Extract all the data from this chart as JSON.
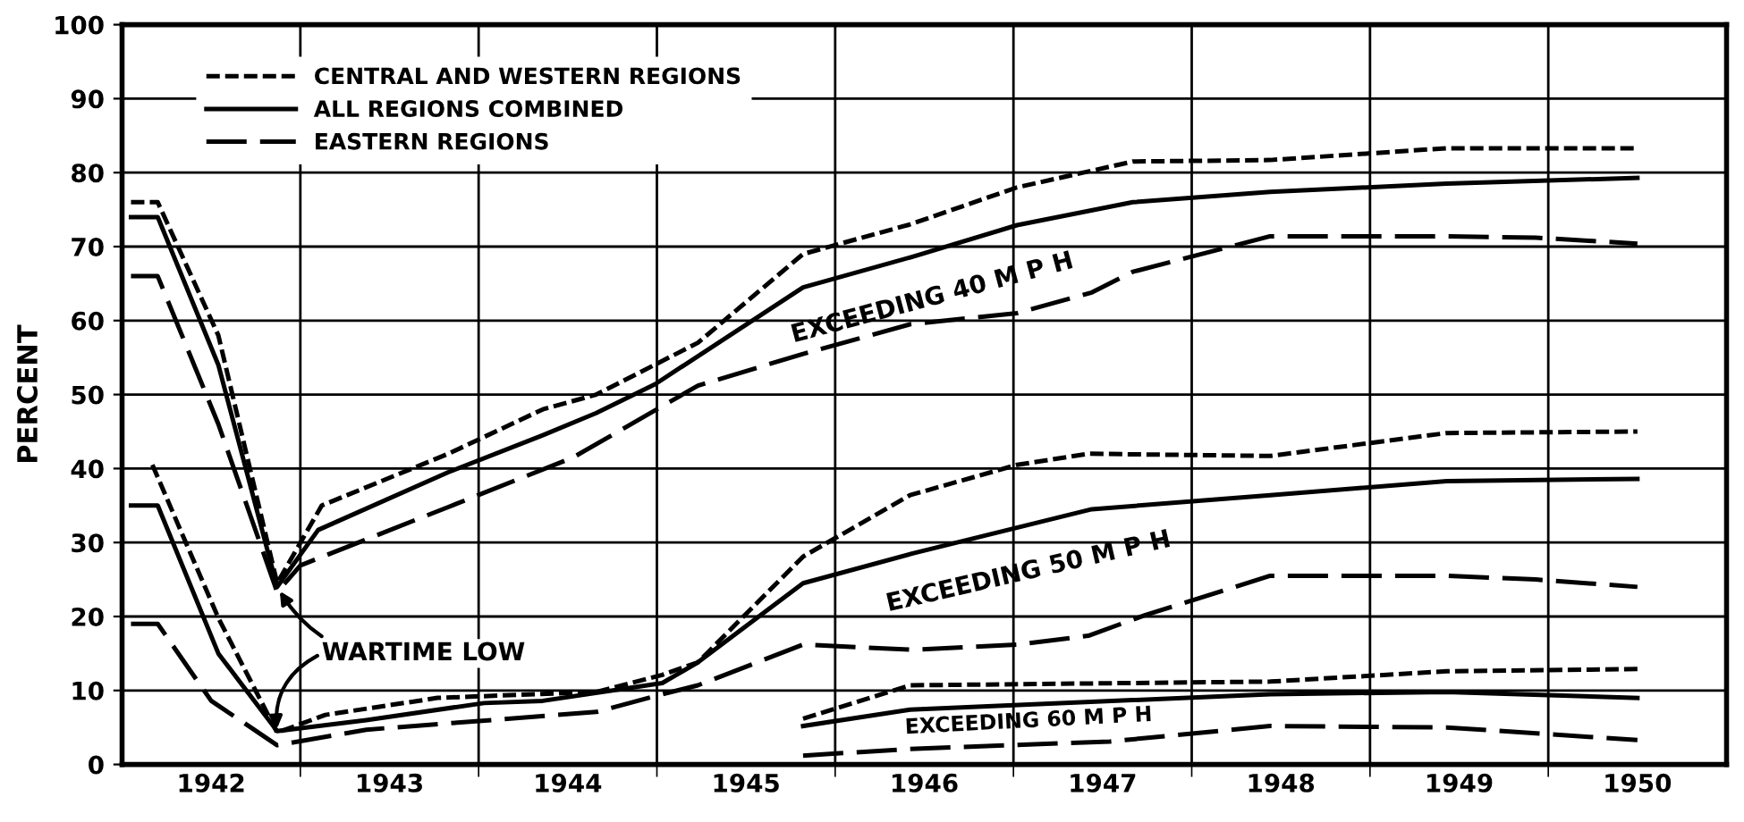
{
  "chart_data": {
    "type": "line",
    "ylabel": "PERCENT",
    "xlim": [
      1942,
      1951
    ],
    "ylim": [
      0,
      100
    ],
    "xticks": [
      {
        "value": 1942.5,
        "label": "1942"
      },
      {
        "value": 1943.5,
        "label": "1943"
      },
      {
        "value": 1944.5,
        "label": "1944"
      },
      {
        "value": 1945.5,
        "label": "1945"
      },
      {
        "value": 1946.5,
        "label": "1946"
      },
      {
        "value": 1947.5,
        "label": "1947"
      },
      {
        "value": 1948.5,
        "label": "1948"
      },
      {
        "value": 1949.5,
        "label": "1949"
      },
      {
        "value": 1950.5,
        "label": "1950"
      },
      {
        "value": 1943,
        "label": null
      },
      {
        "value": 1944,
        "label": null
      },
      {
        "value": 1945,
        "label": null
      },
      {
        "value": 1946,
        "label": null
      },
      {
        "value": 1947,
        "label": null
      },
      {
        "value": 1948,
        "label": null
      },
      {
        "value": 1949,
        "label": null
      },
      {
        "value": 1950,
        "label": null
      }
    ],
    "yticks": [
      0,
      10,
      20,
      30,
      40,
      50,
      60,
      70,
      80,
      90,
      100
    ],
    "grid": true,
    "legend": "top left",
    "series": [
      {
        "name": "CENTRAL AND WESTERN REGIONS",
        "color": "#000000",
        "line_style": "dashed",
        "x": [
          1942.05,
          1942.2,
          1942.54,
          1942.87,
          1943.12,
          1943.83,
          1944.36,
          1944.66,
          1945.23,
          1945.82,
          1946.42,
          1947.02,
          1947.67,
          1948.44,
          1949.43,
          1950.5
        ],
        "values": [
          76,
          76,
          58,
          24.5,
          35,
          42,
          48,
          50,
          57,
          69,
          73,
          78,
          81.5,
          81.7,
          83.3,
          83.3
        ]
      },
      {
        "name": "ALL REGIONS COMBINED",
        "color": "#000000",
        "line_style": "solid",
        "x": [
          1942.05,
          1942.2,
          1942.54,
          1942.87,
          1943.1,
          1943.83,
          1944.36,
          1944.66,
          1944.99,
          1945.82,
          1946.43,
          1947.02,
          1947.67,
          1948.44,
          1949.43,
          1950.5
        ],
        "values": [
          74,
          74,
          54,
          24,
          31.7,
          39.5,
          44.5,
          47.5,
          51.4,
          64.5,
          68.6,
          72.9,
          76,
          77.4,
          78.5,
          79.3
        ]
      },
      {
        "name": "EASTERN REGIONS",
        "color": "#000000",
        "line_style": "dashed",
        "x": [
          1942.05,
          1942.2,
          1942.54,
          1942.87,
          1943.0,
          1943.83,
          1944.53,
          1945.23,
          1945.82,
          1946.42,
          1947.02,
          1947.44,
          1947.67,
          1948.44,
          1949.43,
          1949.93,
          1950.5
        ],
        "values": [
          66,
          66,
          46,
          23.3,
          26.9,
          34.8,
          41.5,
          51.2,
          55.5,
          59.5,
          61,
          63.8,
          66.6,
          71.4,
          71.4,
          71.2,
          70.4
        ]
      },
      {
        "color": "#000000",
        "line_style": "dashed",
        "x": [
          1942.17,
          1942.54,
          1942.87,
          1943.14,
          1943.77,
          1944.66,
          1945.03,
          1945.23,
          1945.82,
          1946.42,
          1947.02,
          1947.42,
          1948.44,
          1949.43,
          1950.5
        ],
        "values": [
          40.5,
          19.8,
          4.3,
          6.7,
          9,
          9.8,
          12.1,
          13.8,
          28.1,
          36.4,
          40.5,
          42,
          41.7,
          44.8,
          45
        ]
      },
      {
        "color": "#000000",
        "line_style": "solid",
        "x": [
          1942.05,
          1942.2,
          1942.54,
          1942.87,
          1943.37,
          1944.03,
          1944.36,
          1945.03,
          1945.23,
          1945.82,
          1946.43,
          1947.44,
          1948.44,
          1949.43,
          1950.5
        ],
        "values": [
          35,
          35,
          15,
          4.5,
          6,
          8.3,
          8.6,
          11,
          13.8,
          24.5,
          28.5,
          34.5,
          36.4,
          38.3,
          38.6
        ]
      },
      {
        "color": "#000000",
        "line_style": "dashed",
        "x": [
          1942.05,
          1942.2,
          1942.5,
          1942.87,
          1943.37,
          1944.66,
          1945.03,
          1945.23,
          1945.82,
          1946.43,
          1947.02,
          1947.42,
          1947.74,
          1948.44,
          1949.43,
          1949.93,
          1950.5
        ],
        "values": [
          19,
          19,
          8.6,
          2.6,
          4.7,
          7.1,
          9.5,
          10.7,
          16.2,
          15.5,
          16.2,
          17.4,
          20.2,
          25.5,
          25.5,
          25,
          24
        ]
      },
      {
        "color": "#000000",
        "line_style": "dashed",
        "x": [
          1945.82,
          1946.42,
          1948.44,
          1949.43,
          1950.5
        ],
        "values": [
          6.2,
          10.7,
          11.2,
          12.6,
          12.9
        ]
      },
      {
        "color": "#000000",
        "line_style": "solid",
        "x": [
          1945.82,
          1946.42,
          1948.44,
          1949.43,
          1950.5
        ],
        "values": [
          5.2,
          7.4,
          9.5,
          9.8,
          9
        ]
      },
      {
        "color": "#000000",
        "line_style": "dashed",
        "x": [
          1945.82,
          1946.42,
          1947.54,
          1948.44,
          1949.43,
          1950.5
        ],
        "values": [
          1.2,
          2.1,
          3.1,
          5.2,
          5,
          3.3
        ]
      }
    ],
    "annotations": [
      "EXCEEDING 40 M P H",
      "EXCEEDING 50 M P H",
      "EXCEEDING 60 M P H",
      {
        "text": "WARTIME LOW",
        "x": 1942.87,
        "y": 24
      }
    ]
  }
}
